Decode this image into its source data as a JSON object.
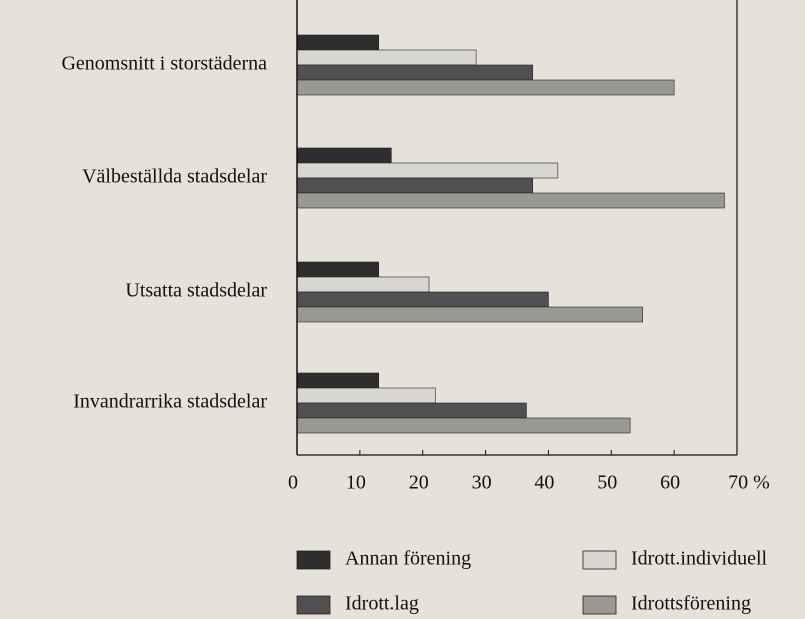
{
  "chart_data": {
    "type": "barh",
    "categories": [
      "Genomsnitt i storstäderna",
      "Välbeställda stadsdelar",
      "Utsatta stadsdelar",
      "Invandrarrika stadsdelar"
    ],
    "series": [
      {
        "name": "Annan förening",
        "color": "#2e2e2e",
        "values": [
          13,
          15,
          13,
          13
        ]
      },
      {
        "name": "Idrott.individuell",
        "color": "#d8d6d0",
        "values": [
          28.5,
          41.5,
          21,
          22
        ]
      },
      {
        "name": "Idrott.lag",
        "color": "#505050",
        "values": [
          37.5,
          37.5,
          40,
          36.5
        ]
      },
      {
        "name": "Idrottsförening",
        "color": "#9a9893",
        "values": [
          60,
          68,
          55,
          53
        ]
      }
    ],
    "xlim": [
      0,
      70
    ],
    "xticks": [
      0,
      10,
      20,
      30,
      40,
      50,
      60,
      {
        "value": 70,
        "label": "70 %"
      }
    ]
  }
}
